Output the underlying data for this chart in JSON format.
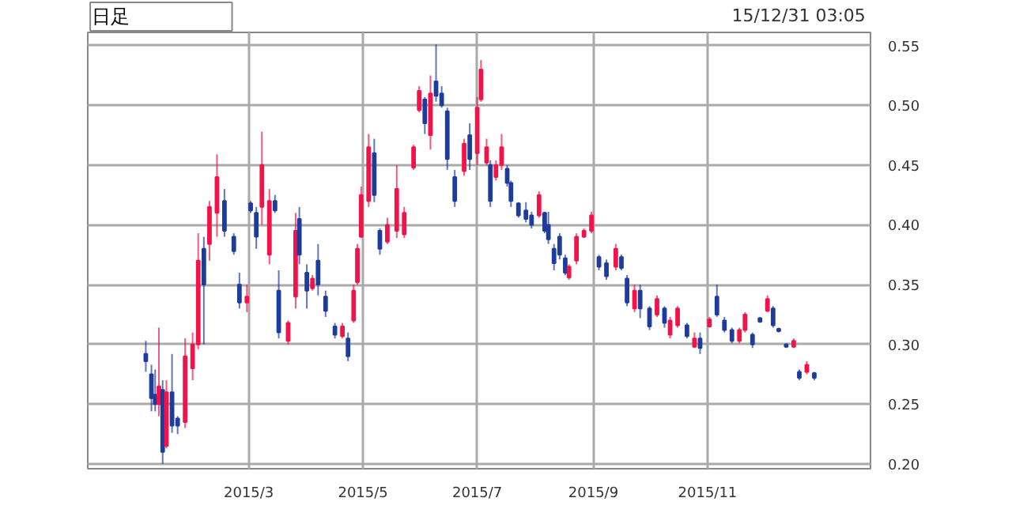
{
  "chart_data": {
    "type": "candlestick",
    "annotations": [
      "日足",
      "15/12/31 03:05"
    ],
    "x": [
      "2015-01-05",
      "2015-01-08",
      "2015-01-10",
      "2015-01-12",
      "2015-01-14",
      "2015-01-16",
      "2015-01-19",
      "2015-01-22",
      "2015-01-26",
      "2015-01-30",
      "2015-02-02",
      "2015-02-05",
      "2015-02-08",
      "2015-02-12",
      "2015-02-16",
      "2015-02-21",
      "2015-02-24",
      "2015-02-28",
      "2015-03-02",
      "2015-03-05",
      "2015-03-08",
      "2015-03-12",
      "2015-03-15",
      "2015-03-17",
      "2015-03-22",
      "2015-03-26",
      "2015-03-28",
      "2015-04-01",
      "2015-04-04",
      "2015-04-07",
      "2015-04-11",
      "2015-04-16",
      "2015-04-20",
      "2015-04-23",
      "2015-04-26",
      "2015-04-28",
      "2015-04-30",
      "2015-05-04",
      "2015-05-07",
      "2015-05-10",
      "2015-05-14",
      "2015-05-19",
      "2015-05-23",
      "2015-05-28",
      "2015-05-31",
      "2015-06-03",
      "2015-06-06",
      "2015-06-09",
      "2015-06-12",
      "2015-06-15",
      "2015-06-19",
      "2015-06-24",
      "2015-06-27",
      "2015-07-01",
      "2015-07-03",
      "2015-07-06",
      "2015-07-08",
      "2015-07-11",
      "2015-07-14",
      "2015-07-17",
      "2015-07-19",
      "2015-07-23",
      "2015-07-27",
      "2015-07-30",
      "2015-08-03",
      "2015-08-06",
      "2015-08-08",
      "2015-08-11",
      "2015-08-14",
      "2015-08-17",
      "2015-08-19",
      "2015-08-23",
      "2015-08-27",
      "2015-08-31",
      "2015-09-04",
      "2015-09-08",
      "2015-09-13",
      "2015-09-16",
      "2015-09-19",
      "2015-09-23",
      "2015-09-26",
      "2015-10-01",
      "2015-10-05",
      "2015-10-09",
      "2015-10-12",
      "2015-10-16",
      "2015-10-21",
      "2015-10-25",
      "2015-10-28",
      "2015-11-02",
      "2015-11-06",
      "2015-11-10",
      "2015-11-14",
      "2015-11-18",
      "2015-11-21",
      "2015-11-25",
      "2015-11-29",
      "2015-12-03",
      "2015-12-06",
      "2015-12-09",
      "2015-12-13",
      "2015-12-17",
      "2015-12-20",
      "2015-12-24",
      "2015-12-28"
    ],
    "ohlc": [
      [
        0.292,
        0.303,
        0.277,
        0.286
      ],
      [
        0.275,
        0.283,
        0.244,
        0.255
      ],
      [
        0.258,
        0.279,
        0.244,
        0.25
      ],
      [
        0.25,
        0.314,
        0.24,
        0.265
      ],
      [
        0.262,
        0.27,
        0.2,
        0.21
      ],
      [
        0.215,
        0.27,
        0.213,
        0.26
      ],
      [
        0.26,
        0.292,
        0.226,
        0.232
      ],
      [
        0.238,
        0.24,
        0.225,
        0.232
      ],
      [
        0.235,
        0.305,
        0.23,
        0.29
      ],
      [
        0.28,
        0.31,
        0.27,
        0.3
      ],
      [
        0.3,
        0.393,
        0.296,
        0.37
      ],
      [
        0.38,
        0.39,
        0.3,
        0.35
      ],
      [
        0.384,
        0.42,
        0.37,
        0.415
      ],
      [
        0.41,
        0.459,
        0.39,
        0.44
      ],
      [
        0.42,
        0.43,
        0.39,
        0.395
      ],
      [
        0.39,
        0.393,
        0.375,
        0.378
      ],
      [
        0.35,
        0.36,
        0.33,
        0.335
      ],
      [
        0.335,
        0.35,
        0.327,
        0.34
      ],
      [
        0.418,
        0.42,
        0.41,
        0.412
      ],
      [
        0.41,
        0.415,
        0.38,
        0.39
      ],
      [
        0.415,
        0.478,
        0.4,
        0.45
      ],
      [
        0.375,
        0.43,
        0.367,
        0.42
      ],
      [
        0.42,
        0.425,
        0.41,
        0.412
      ],
      [
        0.345,
        0.362,
        0.305,
        0.31
      ],
      [
        0.303,
        0.32,
        0.3,
        0.318
      ],
      [
        0.34,
        0.41,
        0.33,
        0.395
      ],
      [
        0.405,
        0.415,
        0.367,
        0.375
      ],
      [
        0.36,
        0.367,
        0.33,
        0.345
      ],
      [
        0.347,
        0.358,
        0.345,
        0.355
      ],
      [
        0.37,
        0.384,
        0.341,
        0.35
      ],
      [
        0.34,
        0.345,
        0.323,
        0.328
      ],
      [
        0.315,
        0.318,
        0.305,
        0.308
      ],
      [
        0.307,
        0.318,
        0.305,
        0.315
      ],
      [
        0.305,
        0.31,
        0.286,
        0.29
      ],
      [
        0.32,
        0.35,
        0.318,
        0.345
      ],
      [
        0.352,
        0.384,
        0.35,
        0.38
      ],
      [
        0.39,
        0.432,
        0.389,
        0.425
      ],
      [
        0.42,
        0.476,
        0.415,
        0.465
      ],
      [
        0.46,
        0.472,
        0.419,
        0.425
      ],
      [
        0.395,
        0.397,
        0.375,
        0.38
      ],
      [
        0.386,
        0.406,
        0.384,
        0.4
      ],
      [
        0.395,
        0.45,
        0.389,
        0.43
      ],
      [
        0.392,
        0.415,
        0.389,
        0.41
      ],
      [
        0.448,
        0.467,
        0.446,
        0.465
      ],
      [
        0.496,
        0.516,
        0.494,
        0.512
      ],
      [
        0.505,
        0.507,
        0.476,
        0.485
      ],
      [
        0.475,
        0.525,
        0.463,
        0.51
      ],
      [
        0.52,
        0.551,
        0.503,
        0.508
      ],
      [
        0.51,
        0.516,
        0.498,
        0.5
      ],
      [
        0.495,
        0.498,
        0.446,
        0.455
      ],
      [
        0.44,
        0.446,
        0.415,
        0.42
      ],
      [
        0.445,
        0.472,
        0.441,
        0.468
      ],
      [
        0.475,
        0.485,
        0.446,
        0.455
      ],
      [
        0.46,
        0.507,
        0.45,
        0.498
      ],
      [
        0.505,
        0.538,
        0.503,
        0.53
      ],
      [
        0.452,
        0.472,
        0.45,
        0.465
      ],
      [
        0.45,
        0.454,
        0.415,
        0.42
      ],
      [
        0.44,
        0.454,
        0.437,
        0.45
      ],
      [
        0.45,
        0.476,
        0.446,
        0.465
      ],
      [
        0.447,
        0.45,
        0.432,
        0.435
      ],
      [
        0.435,
        0.437,
        0.415,
        0.42
      ],
      [
        0.418,
        0.419,
        0.406,
        0.408
      ],
      [
        0.412,
        0.419,
        0.402,
        0.405
      ],
      [
        0.408,
        0.411,
        0.397,
        0.4
      ],
      [
        0.408,
        0.428,
        0.406,
        0.425
      ],
      [
        0.41,
        0.411,
        0.393,
        0.395
      ],
      [
        0.4,
        0.411,
        0.384,
        0.388
      ],
      [
        0.38,
        0.384,
        0.362,
        0.368
      ],
      [
        0.39,
        0.393,
        0.371,
        0.375
      ],
      [
        0.372,
        0.375,
        0.358,
        0.36
      ],
      [
        0.356,
        0.367,
        0.354,
        0.365
      ],
      [
        0.37,
        0.393,
        0.367,
        0.39
      ],
      [
        0.39,
        0.397,
        0.389,
        0.395
      ],
      [
        0.395,
        0.411,
        0.393,
        0.408
      ],
      [
        0.373,
        0.375,
        0.362,
        0.365
      ],
      [
        0.368,
        0.371,
        0.354,
        0.357
      ],
      [
        0.365,
        0.384,
        0.362,
        0.38
      ],
      [
        0.373,
        0.375,
        0.362,
        0.364
      ],
      [
        0.355,
        0.358,
        0.332,
        0.335
      ],
      [
        0.33,
        0.35,
        0.327,
        0.345
      ],
      [
        0.345,
        0.35,
        0.322,
        0.33
      ],
      [
        0.33,
        0.332,
        0.312,
        0.315
      ],
      [
        0.325,
        0.341,
        0.323,
        0.338
      ],
      [
        0.33,
        0.332,
        0.314,
        0.318
      ],
      [
        0.308,
        0.323,
        0.305,
        0.32
      ],
      [
        0.316,
        0.332,
        0.314,
        0.33
      ],
      [
        0.316,
        0.318,
        0.305,
        0.307
      ],
      [
        0.298,
        0.31,
        0.297,
        0.305
      ],
      [
        0.305,
        0.31,
        0.292,
        0.297
      ],
      [
        0.315,
        0.323,
        0.314,
        0.321
      ],
      [
        0.34,
        0.35,
        0.323,
        0.325
      ],
      [
        0.32,
        0.323,
        0.31,
        0.312
      ],
      [
        0.312,
        0.314,
        0.301,
        0.303
      ],
      [
        0.303,
        0.314,
        0.301,
        0.312
      ],
      [
        0.312,
        0.327,
        0.31,
        0.325
      ],
      [
        0.308,
        0.31,
        0.297,
        0.3
      ],
      [
        0.322,
        0.323,
        0.318,
        0.319
      ],
      [
        0.328,
        0.341,
        0.327,
        0.338
      ],
      [
        0.33,
        0.332,
        0.314,
        0.316
      ],
      [
        0.313,
        0.314,
        0.31,
        0.311
      ],
      [
        0.3,
        0.301,
        0.297,
        0.298
      ],
      [
        0.298,
        0.305,
        0.297,
        0.303
      ],
      [
        0.277,
        0.279,
        0.27,
        0.272
      ],
      [
        0.277,
        0.286,
        0.275,
        0.283
      ],
      [
        0.276,
        0.277,
        0.27,
        0.272
      ]
    ],
    "colors": [
      "#1e3c9c",
      "#1e3c9c",
      "#1e3c9c",
      "#f0144a",
      "#1e3c9c",
      "#f0144a",
      "#1e3c9c",
      "#1e3c9c",
      "#f0144a",
      "#f0144a",
      "#f0144a",
      "#1e3c9c",
      "#f0144a",
      "#f0144a",
      "#1e3c9c",
      "#1e3c9c",
      "#1e3c9c",
      "#f0144a",
      "#1e3c9c",
      "#1e3c9c",
      "#f0144a",
      "#f0144a",
      "#1e3c9c",
      "#1e3c9c",
      "#f0144a",
      "#f0144a",
      "#1e3c9c",
      "#1e3c9c",
      "#f0144a",
      "#1e3c9c",
      "#1e3c9c",
      "#1e3c9c",
      "#f0144a",
      "#1e3c9c",
      "#f0144a",
      "#f0144a",
      "#f0144a",
      "#f0144a",
      "#1e3c9c",
      "#1e3c9c",
      "#f0144a",
      "#f0144a",
      "#f0144a",
      "#f0144a",
      "#f0144a",
      "#1e3c9c",
      "#f0144a",
      "#1e3c9c",
      "#1e3c9c",
      "#1e3c9c",
      "#1e3c9c",
      "#f0144a",
      "#1e3c9c",
      "#f0144a",
      "#f0144a",
      "#f0144a",
      "#1e3c9c",
      "#f0144a",
      "#f0144a",
      "#1e3c9c",
      "#1e3c9c",
      "#1e3c9c",
      "#1e3c9c",
      "#1e3c9c",
      "#f0144a",
      "#1e3c9c",
      "#1e3c9c",
      "#1e3c9c",
      "#1e3c9c",
      "#1e3c9c",
      "#f0144a",
      "#f0144a",
      "#f0144a",
      "#f0144a",
      "#1e3c9c",
      "#1e3c9c",
      "#f0144a",
      "#1e3c9c",
      "#1e3c9c",
      "#f0144a",
      "#1e3c9c",
      "#1e3c9c",
      "#f0144a",
      "#1e3c9c",
      "#f0144a",
      "#f0144a",
      "#1e3c9c",
      "#f0144a",
      "#1e3c9c",
      "#f0144a",
      "#1e3c9c",
      "#1e3c9c",
      "#1e3c9c",
      "#f0144a",
      "#f0144a",
      "#1e3c9c",
      "#1e3c9c",
      "#f0144a",
      "#1e3c9c",
      "#1e3c9c",
      "#1e3c9c",
      "#f0144a",
      "#1e3c9c",
      "#f0144a",
      "#1e3c9c"
    ],
    "xlim": [
      "2014-12-05",
      "2016-01-27"
    ],
    "xticks": [
      {
        "value": "2015-03-01",
        "label": "2015/3"
      },
      {
        "value": "2015-05-01",
        "label": "2015/5"
      },
      {
        "value": "2015-07-01",
        "label": "2015/7"
      },
      {
        "value": "2015-09-01",
        "label": "2015/9"
      },
      {
        "value": "2015-11-01",
        "label": "2015/11"
      }
    ],
    "ylim": [
      0.196,
      0.561
    ],
    "yticks": [
      {
        "value": 0.2,
        "label": "0.20"
      },
      {
        "value": 0.25,
        "label": "0.25"
      },
      {
        "value": 0.3,
        "label": "0.30"
      },
      {
        "value": 0.35,
        "label": "0.35"
      },
      {
        "value": 0.4,
        "label": "0.40"
      },
      {
        "value": 0.45,
        "label": "0.45"
      },
      {
        "value": 0.5,
        "label": "0.50"
      },
      {
        "value": 0.55,
        "label": "0.55"
      }
    ],
    "grid": true
  }
}
